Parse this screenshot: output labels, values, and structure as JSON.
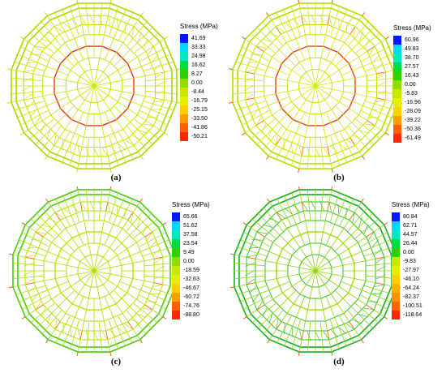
{
  "panels": [
    {
      "id": "a",
      "caption": "(a)",
      "legend": {
        "title": "Stress (MPa)",
        "ticks": [
          "41.69",
          "33.33",
          "24.98",
          "16.62",
          "8.27",
          "0.00",
          "-8.44",
          "-16.79",
          "-25.15",
          "-33.50",
          "-41.86",
          "-50.21"
        ]
      },
      "mesh": {
        "outer": "#a8d800",
        "radial": "#c9e400",
        "inner_ring": "#e0301c",
        "rings": "#c8e000"
      }
    },
    {
      "id": "b",
      "caption": "(b)",
      "legend": {
        "title": "Stress (MPa)",
        "ticks": [
          "60.96",
          "49.83",
          "38.70",
          "27.57",
          "16.43",
          "0.00",
          "-5.83",
          "-16.96",
          "-28.09",
          "-39.22",
          "-50.36",
          "-61.49"
        ]
      },
      "mesh": {
        "outer": "#b4dc00",
        "radial": "#d2e800",
        "inner_ring": "#d8401c",
        "rings": "#c8e000"
      }
    },
    {
      "id": "c",
      "caption": "(c)",
      "legend": {
        "title": "Stress (MPa)",
        "ticks": [
          "65.66",
          "51.62",
          "37.58",
          "23.54",
          "9.49",
          "0.00",
          "-18.59",
          "-32.63",
          "-46.67",
          "-60.72",
          "-74.76",
          "-88.80"
        ]
      },
      "mesh": {
        "outer": "#44cc10",
        "radial": "#b0dc00",
        "inner_ring": "#c8e000",
        "rings": "#b8de00"
      }
    },
    {
      "id": "d",
      "caption": "(d)",
      "legend": {
        "title": "Stress (MPa)",
        "ticks": [
          "80.84",
          "62.71",
          "44.57",
          "26.44",
          "0.00",
          "-9.83",
          "-27.97",
          "-46.10",
          "-64.24",
          "-82.37",
          "-100.51",
          "-118.64"
        ]
      },
      "mesh": {
        "outer": "#10b020",
        "radial": "#90d400",
        "inner_ring": "#a8d800",
        "rings": "#30c020"
      }
    }
  ],
  "colors": [
    "#0018ff",
    "#00d8ff",
    "#00eac0",
    "#00dc40",
    "#30d000",
    "#90dc00",
    "#c8e800",
    "#e8ec00",
    "#ffd000",
    "#ff9c00",
    "#ff6000",
    "#ff2800"
  ],
  "colors_d": [
    "#0018ff",
    "#00d8ff",
    "#00eac0",
    "#00dc40",
    "#30d000",
    "#c8e800",
    "#e8ec00",
    "#ffd000",
    "#ffb000",
    "#ff9000",
    "#ff6000",
    "#ff2800"
  ]
}
